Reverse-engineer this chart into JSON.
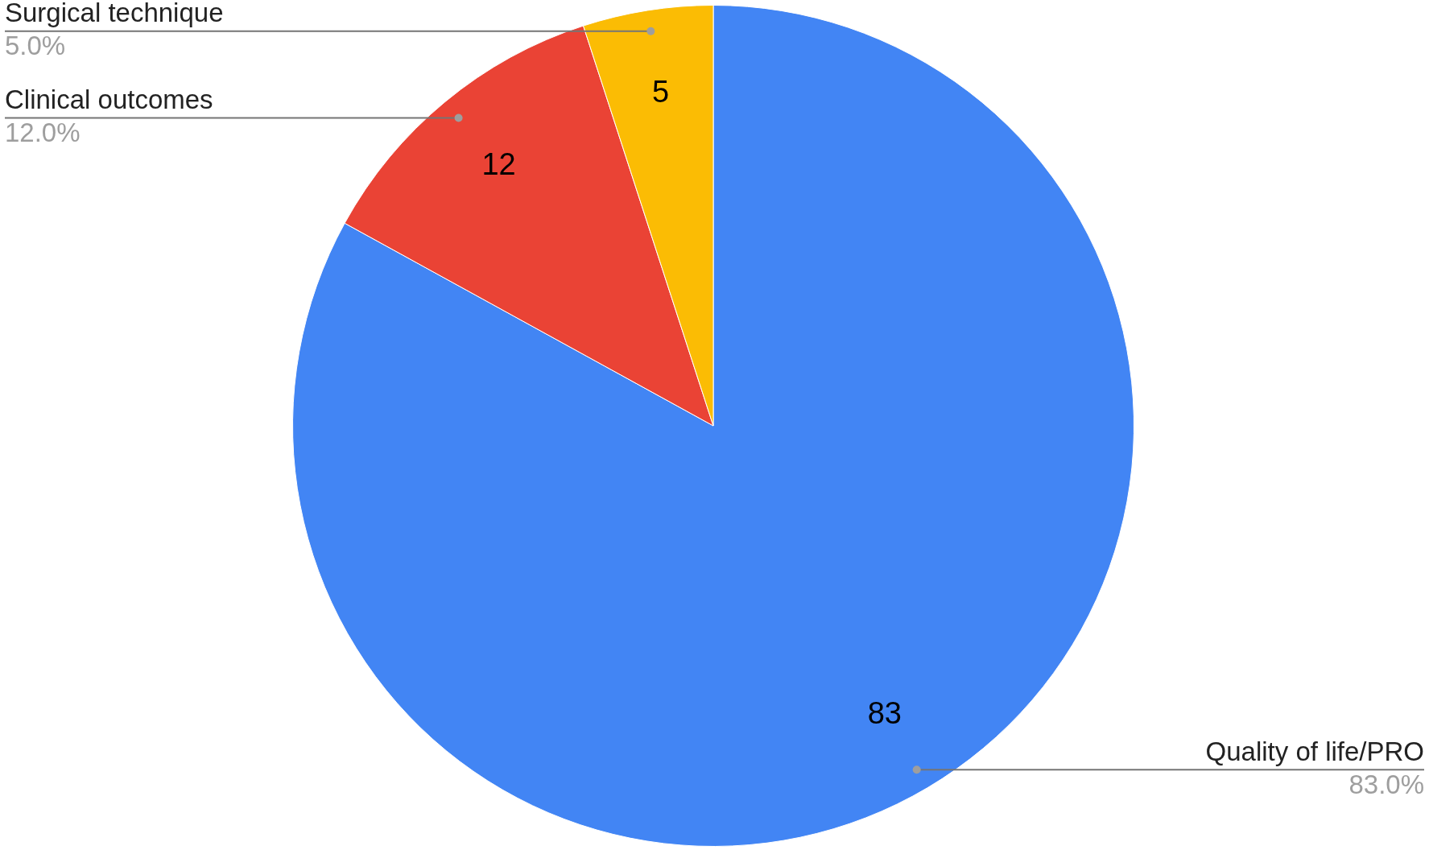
{
  "chart_data": {
    "type": "pie",
    "categories": [
      "Quality of life/PRO",
      "Clinical outcomes",
      "Surgical technique"
    ],
    "values": [
      83,
      12,
      5
    ],
    "colors": [
      "#4285f4",
      "#ea4335",
      "#fbbc04"
    ],
    "value_labels": [
      "83",
      "12",
      "5"
    ],
    "annotations": [
      "83.0%",
      "12.0%",
      "5.0%"
    ],
    "legend": false
  }
}
